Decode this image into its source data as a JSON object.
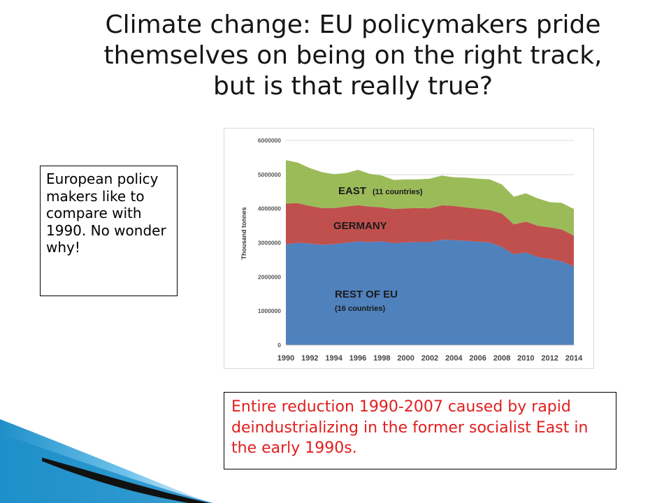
{
  "slide": {
    "title_lines": [
      "Climate change: EU policymakers pride",
      "themselves on being on the right track,",
      "but is that really true?"
    ],
    "left_note": "European policy makers like to compare with 1990. No wonder why!",
    "bottom_note": "Entire reduction 1990-2007 caused  by rapid deindustrializing in the former socialist East in the early 1990s."
  },
  "colors": {
    "rest_of_eu": "#4f81bd",
    "germany": "#c0504d",
    "east": "#9bbb59",
    "bottom_note_text": "#e01e1e",
    "decoration_blue": "#1f8fc9",
    "decoration_dark": "#111111"
  },
  "chart_data": {
    "type": "area",
    "stacked": true,
    "title": "",
    "xlabel": "",
    "ylabel": "Thousand tonnes",
    "ylim": [
      0,
      6000000
    ],
    "yticks": [
      "0",
      "1000000",
      "2000000",
      "3000000",
      "4000000",
      "5000000",
      "6000000"
    ],
    "xticks": [
      "1990",
      "1992",
      "1994",
      "1996",
      "1998",
      "2000",
      "2002",
      "2004",
      "2006",
      "2008",
      "2010",
      "2012",
      "2014"
    ],
    "grid": true,
    "x": [
      1990,
      1991,
      1992,
      1993,
      1994,
      1995,
      1996,
      1997,
      1998,
      1999,
      2000,
      2001,
      2002,
      2003,
      2004,
      2005,
      2006,
      2007,
      2008,
      2009,
      2010,
      2011,
      2012,
      2013,
      2014
    ],
    "series": [
      {
        "name": "REST OF EU",
        "values": [
          2950000,
          3000000,
          2980000,
          2940000,
          2960000,
          3000000,
          3040000,
          3020000,
          3040000,
          2990000,
          3010000,
          3020000,
          3020000,
          3090000,
          3080000,
          3060000,
          3030000,
          3010000,
          2880000,
          2660000,
          2720000,
          2580000,
          2530000,
          2450000,
          2310000
        ]
      },
      {
        "name": "GERMANY",
        "values": [
          1200000,
          1160000,
          1100000,
          1080000,
          1060000,
          1060000,
          1060000,
          1040000,
          1000000,
          1000000,
          1000000,
          1000000,
          990000,
          1010000,
          1000000,
          980000,
          970000,
          950000,
          980000,
          880000,
          900000,
          920000,
          920000,
          940000,
          900000
        ]
      },
      {
        "name": "EAST",
        "values": [
          1270000,
          1190000,
          1110000,
          1050000,
          990000,
          980000,
          1040000,
          960000,
          930000,
          850000,
          850000,
          840000,
          870000,
          870000,
          840000,
          870000,
          880000,
          900000,
          850000,
          810000,
          830000,
          800000,
          740000,
          780000,
          780000
        ]
      }
    ],
    "annotations": [
      {
        "main": "EAST",
        "sub": "(11 countries)"
      },
      {
        "main": "GERMANY",
        "sub": ""
      },
      {
        "main": "REST OF EU",
        "sub": "(16 countries)"
      }
    ]
  }
}
